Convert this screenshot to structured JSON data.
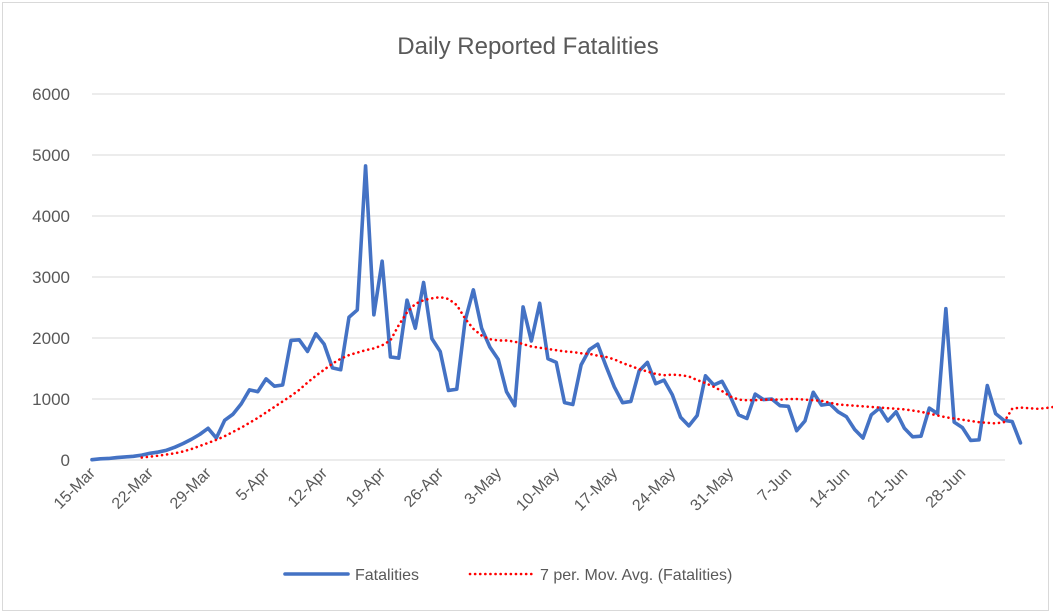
{
  "chart_data": {
    "type": "line",
    "title": "Daily Reported Fatalities",
    "xlabel": "",
    "ylabel": "",
    "ylim": [
      0,
      6000
    ],
    "yticks": [
      0,
      1000,
      2000,
      3000,
      4000,
      5000,
      6000
    ],
    "xtick_labels": [
      "15-Mar",
      "22-Mar",
      "29-Mar",
      "5-Apr",
      "12-Apr",
      "19-Apr",
      "26-Apr",
      "3-May",
      "10-May",
      "17-May",
      "24-May",
      "31-May",
      "7-Jun",
      "14-Jun",
      "21-Jun",
      "28-Jun"
    ],
    "grid": "horizontal",
    "legend_position": "bottom",
    "x_start_date": "15-Mar",
    "series": [
      {
        "name": "Fatalities",
        "color": "#4472c4",
        "style": "solid",
        "values": [
          5,
          20,
          25,
          40,
          50,
          60,
          80,
          110,
          130,
          160,
          210,
          270,
          340,
          420,
          520,
          360,
          650,
          750,
          920,
          1150,
          1120,
          1330,
          1210,
          1230,
          1960,
          1970,
          1780,
          2070,
          1900,
          1510,
          1480,
          2340,
          2460,
          4820,
          2380,
          3260,
          1690,
          1670,
          2620,
          2160,
          2910,
          1990,
          1780,
          1140,
          1160,
          2280,
          2790,
          2160,
          1850,
          1650,
          1120,
          890,
          2510,
          1950,
          2570,
          1660,
          1600,
          940,
          910,
          1560,
          1810,
          1900,
          1540,
          1200,
          940,
          960,
          1460,
          1600,
          1250,
          1310,
          1070,
          700,
          560,
          730,
          1380,
          1230,
          1290,
          1040,
          740,
          680,
          1080,
          990,
          1000,
          890,
          880,
          480,
          640,
          1110,
          900,
          920,
          790,
          710,
          500,
          360,
          740,
          850,
          640,
          790,
          520,
          380,
          390,
          850,
          760,
          2480,
          620,
          530,
          320,
          330,
          1220,
          760,
          650,
          630,
          280
        ]
      },
      {
        "name": "7 per. Mov. Avg. (Fatalities)",
        "color": "#ff0000",
        "style": "dotted",
        "start_index": 6,
        "values": [
          40,
          55,
          70,
          90,
          110,
          140,
          180,
          230,
          280,
          330,
          390,
          460,
          530,
          610,
          690,
          780,
          870,
          960,
          1050,
          1150,
          1270,
          1380,
          1480,
          1580,
          1660,
          1720,
          1760,
          1800,
          1830,
          1880,
          1960,
          2210,
          2420,
          2560,
          2620,
          2650,
          2670,
          2640,
          2540,
          2320,
          2150,
          2040,
          1980,
          1960,
          1960,
          1940,
          1900,
          1860,
          1840,
          1820,
          1800,
          1780,
          1770,
          1750,
          1740,
          1710,
          1690,
          1650,
          1590,
          1540,
          1490,
          1450,
          1410,
          1390,
          1400,
          1390,
          1370,
          1310,
          1260,
          1200,
          1130,
          1040,
          990,
          980,
          980,
          990,
          990,
          990,
          1000,
          1000,
          990,
          980,
          970,
          940,
          910,
          900,
          890,
          880,
          870,
          860,
          850,
          840,
          830,
          810,
          790,
          760,
          730,
          700,
          680,
          660,
          640,
          620,
          610,
          600,
          620,
          840,
          860,
          850,
          840,
          850,
          870,
          830,
          720,
          640
        ]
      }
    ]
  }
}
